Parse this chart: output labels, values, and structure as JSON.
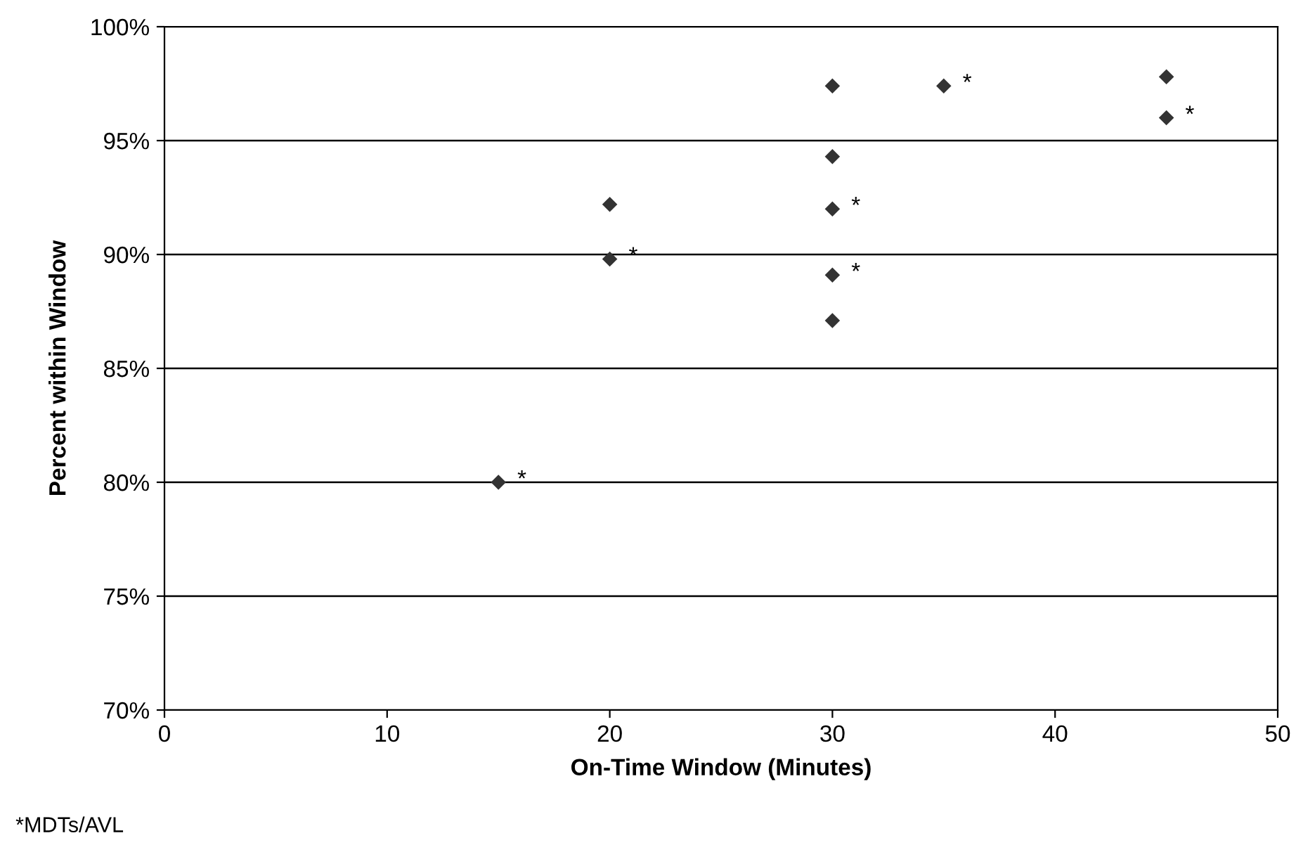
{
  "chart_data": {
    "type": "scatter",
    "xlabel": "On-Time Window (Minutes)",
    "ylabel": "Percent within Window",
    "x": [
      15,
      20,
      20,
      30,
      30,
      30,
      30,
      30,
      35,
      45,
      45
    ],
    "values": [
      80.0,
      92.2,
      89.8,
      97.4,
      94.3,
      92.0,
      89.1,
      87.1,
      97.4,
      97.8,
      96.0
    ],
    "color": "#333333",
    "marker": "diamond",
    "xlim": [
      0,
      50
    ],
    "xticks": [
      0,
      10,
      20,
      30,
      40,
      50
    ],
    "ylim": [
      70,
      100
    ],
    "yticks": [
      {
        "value": 70,
        "label": "70%"
      },
      {
        "value": 75,
        "label": "75%"
      },
      {
        "value": 80,
        "label": "80%"
      },
      {
        "value": 85,
        "label": "85%"
      },
      {
        "value": 90,
        "label": "90%"
      },
      {
        "value": 95,
        "label": "95%"
      },
      {
        "value": 100,
        "label": "100%"
      }
    ],
    "grid": "y",
    "legend": false,
    "annotations": [
      {
        "text": "*",
        "x": 15,
        "y": 80.0
      },
      {
        "text": "*",
        "x": 20,
        "y": 89.8
      },
      {
        "text": "*",
        "x": 30,
        "y": 92.0
      },
      {
        "text": "*",
        "x": 30,
        "y": 89.1
      },
      {
        "text": "*",
        "x": 35,
        "y": 97.4
      },
      {
        "text": "*",
        "x": 45,
        "y": 96.0
      },
      "*MDTs/AVL"
    ]
  }
}
